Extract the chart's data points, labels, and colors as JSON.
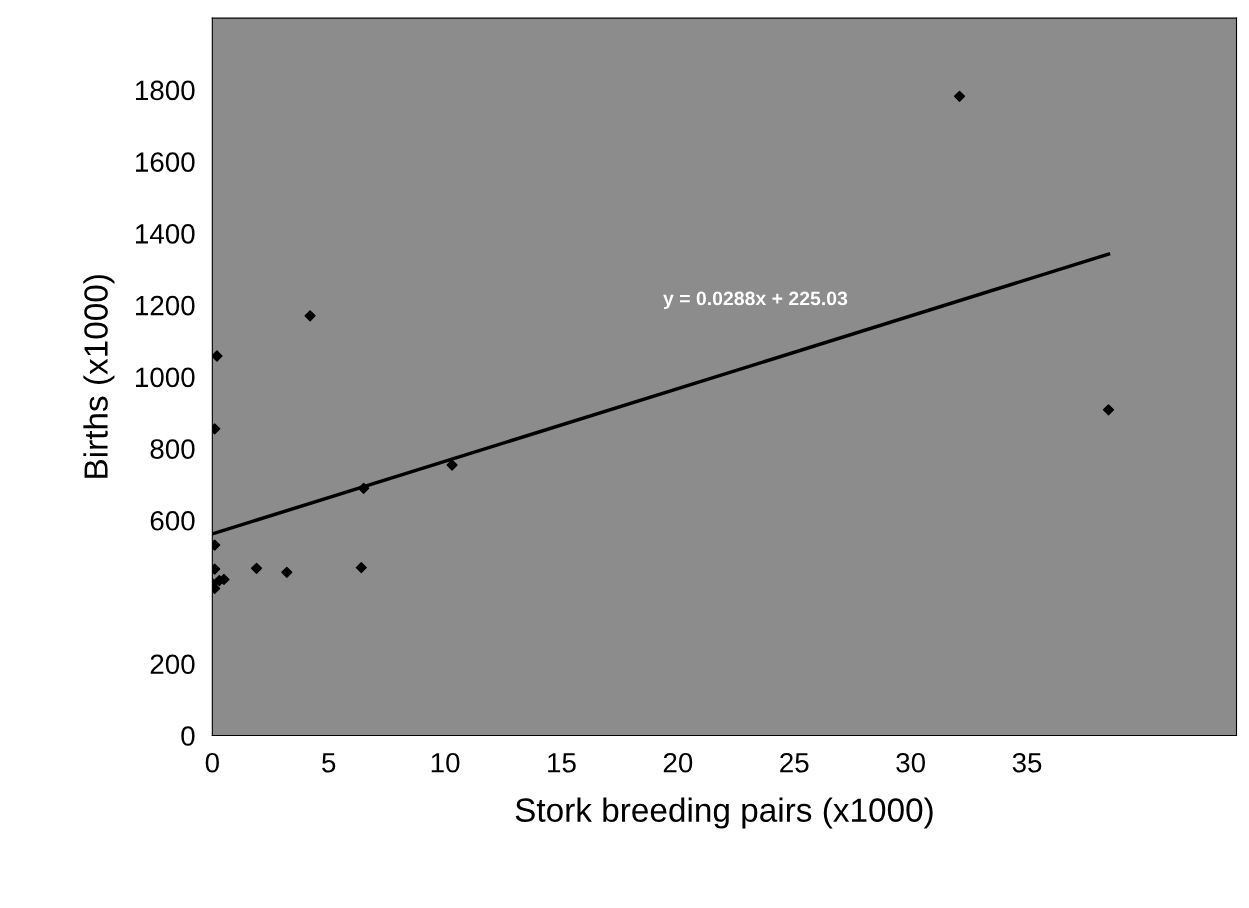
{
  "chart_data": {
    "type": "scatter",
    "xlabel": "Stork breeding pairs (x1000)",
    "ylabel": "Births (x1000)",
    "xlim": [
      0,
      44
    ],
    "ylim": [
      0,
      2000
    ],
    "xticks": [
      0,
      5,
      10,
      15,
      20,
      25,
      30,
      35
    ],
    "yticks": [
      0,
      200,
      600,
      800,
      1000,
      1200,
      1400,
      1600,
      1800
    ],
    "grid": false,
    "legend": false,
    "marker": "diamond",
    "series": [
      {
        "color": "#000000",
        "x": [
          32.1,
          38.5,
          4.2,
          0.2,
          0.1,
          10.3,
          6.5,
          0.1,
          0.1,
          1.9,
          3.2,
          6.4,
          0.3,
          0.5,
          0.1,
          0.0
        ],
        "values": [
          1782,
          908,
          1170,
          1058,
          855,
          754,
          689,
          531,
          464,
          466,
          455,
          468,
          432,
          435,
          410,
          423
        ]
      },
      {
        "type": "line",
        "color": "#000000",
        "marker": "none",
        "x": [
          0,
          38.5
        ],
        "values": [
          562,
          1342
        ]
      }
    ],
    "annotations": [
      "y = 0.0288x + 225.03"
    ]
  }
}
